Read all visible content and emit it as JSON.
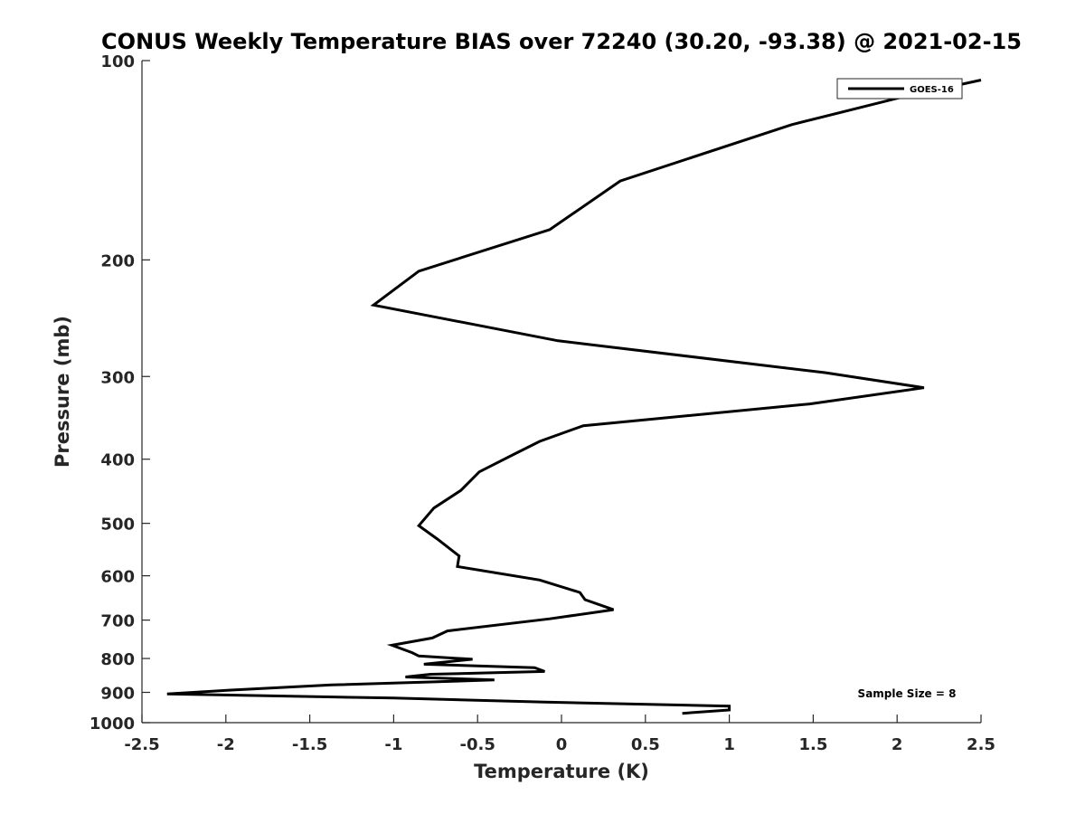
{
  "chart_data": {
    "type": "line",
    "title": "CONUS Weekly Temperature BIAS over 72240 (30.20, -93.38) @ 2021-02-15",
    "xlabel": "Temperature (K)",
    "ylabel": "Pressure (mb)",
    "xlim": [
      -2.5,
      2.5
    ],
    "ylim": [
      1000,
      100
    ],
    "y_scale": "log",
    "y_reversed": true,
    "x_ticks": [
      "-2.5",
      "-2",
      "-1.5",
      "-1",
      "-0.5",
      "0",
      "0.5",
      "1",
      "1.5",
      "2",
      "2.5"
    ],
    "y_ticks": [
      "100",
      "200",
      "300",
      "400",
      "500",
      "600",
      "700",
      "800",
      "900",
      "1000"
    ],
    "grid": false,
    "legend": {
      "position": "top-right",
      "entries": [
        "GOES-16"
      ]
    },
    "annotation": "Sample Size = 8",
    "series": [
      {
        "name": "GOES-16",
        "color": "#000000",
        "points": [
          [
            2.5,
            107
          ],
          [
            2.0,
            114
          ],
          [
            1.37,
            125
          ],
          [
            0.35,
            152
          ],
          [
            -0.07,
            180
          ],
          [
            -0.85,
            208
          ],
          [
            -1.12,
            234
          ],
          [
            -0.02,
            265
          ],
          [
            1.57,
            296
          ],
          [
            2.16,
            312
          ],
          [
            1.48,
            330
          ],
          [
            0.13,
            356
          ],
          [
            -0.13,
            376
          ],
          [
            -0.29,
            394
          ],
          [
            -0.49,
            418
          ],
          [
            -0.6,
            446
          ],
          [
            -0.76,
            474
          ],
          [
            -0.85,
            504
          ],
          [
            -0.74,
            528
          ],
          [
            -0.61,
            560
          ],
          [
            -0.62,
            581
          ],
          [
            -0.13,
            609
          ],
          [
            0.11,
            636
          ],
          [
            0.14,
            652
          ],
          [
            0.31,
            675
          ],
          [
            -0.07,
            697
          ],
          [
            -0.68,
            727
          ],
          [
            -0.77,
            745
          ],
          [
            -1.01,
            764
          ],
          [
            -0.89,
            784
          ],
          [
            -0.85,
            793
          ],
          [
            -0.53,
            802
          ],
          [
            -0.82,
            816
          ],
          [
            -0.16,
            826
          ],
          [
            -0.1,
            837
          ],
          [
            -0.78,
            845
          ],
          [
            -0.93,
            853
          ],
          [
            -0.4,
            862
          ],
          [
            -1.37,
            877
          ],
          [
            -1.97,
            893
          ],
          [
            -2.35,
            905
          ],
          [
            -1.0,
            918
          ],
          [
            -0.1,
            931
          ],
          [
            1.0,
            944
          ],
          [
            1.0,
            957
          ],
          [
            0.72,
            968
          ]
        ]
      }
    ]
  }
}
